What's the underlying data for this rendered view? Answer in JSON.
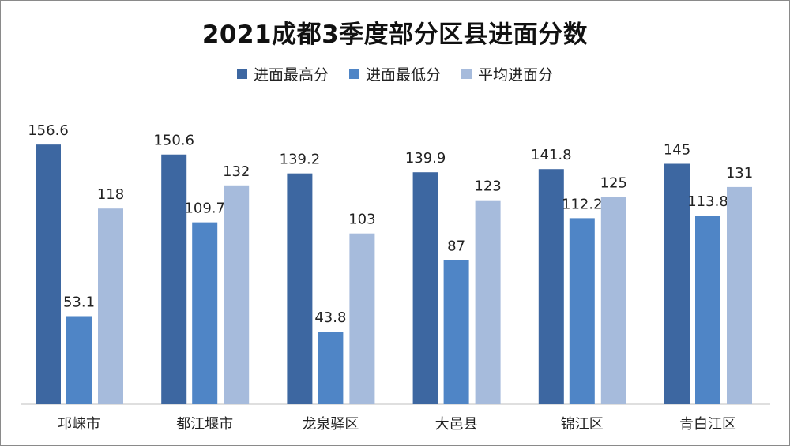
{
  "chart_data": {
    "type": "bar",
    "title": "2021成都3季度部分区县进面分数",
    "categories": [
      "邛崃市",
      "都江堰市",
      "龙泉驿区",
      "大邑县",
      "锦江区",
      "青白江区"
    ],
    "series": [
      {
        "name": "进面最高分",
        "values": [
          156.6,
          150.6,
          139.2,
          139.9,
          141.8,
          145
        ],
        "labels": [
          "156.6",
          "150.6",
          "139.2",
          "139.9",
          "141.8",
          "145"
        ],
        "color": "#3d67a1"
      },
      {
        "name": "进面最低分",
        "values": [
          53.1,
          109.7,
          43.8,
          87,
          112.2,
          113.8
        ],
        "labels": [
          "53.1",
          "109.7",
          "43.8",
          "87",
          "112.2",
          "113.8"
        ],
        "color": "#4f85c6"
      },
      {
        "name": "平均进面分",
        "values": [
          118,
          132,
          103,
          123,
          125,
          131
        ],
        "labels": [
          "118",
          "132",
          "103",
          "123",
          "125",
          "131"
        ],
        "color": "#a6bbdc"
      }
    ],
    "xlabel": "",
    "ylabel": "",
    "ylim": [
      0,
      180
    ],
    "grid": false,
    "legend": "top-center"
  }
}
